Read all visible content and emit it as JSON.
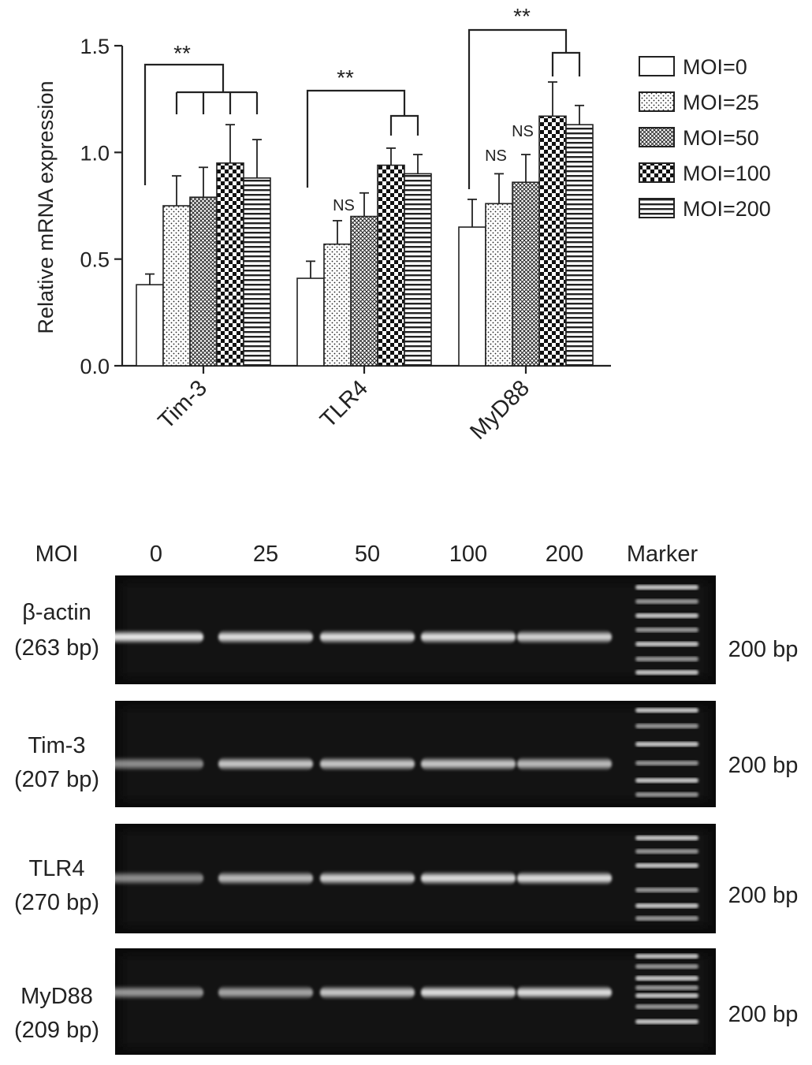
{
  "chart_data": {
    "type": "bar",
    "ylabel": "Relative mRNA expression",
    "xlabel": "",
    "ylim": [
      0,
      1.5
    ],
    "yticks": [
      "0.0",
      "0.5",
      "1.0",
      "1.5"
    ],
    "categories": [
      "Tim-3",
      "TLR4",
      "MyD88"
    ],
    "legend_position": "right",
    "series": [
      {
        "name": "MOI=0",
        "pattern": "white",
        "values": [
          0.38,
          0.41,
          0.65
        ],
        "errors": [
          0.05,
          0.08,
          0.13
        ]
      },
      {
        "name": "MOI=25",
        "pattern": "dots",
        "values": [
          0.75,
          0.57,
          0.76
        ],
        "errors": [
          0.14,
          0.11,
          0.14
        ]
      },
      {
        "name": "MOI=50",
        "pattern": "crosshatch",
        "values": [
          0.79,
          0.7,
          0.86
        ],
        "errors": [
          0.14,
          0.11,
          0.13
        ]
      },
      {
        "name": "MOI=100",
        "pattern": "checker",
        "values": [
          0.95,
          0.94,
          1.17
        ],
        "errors": [
          0.18,
          0.08,
          0.16
        ]
      },
      {
        "name": "MOI=200",
        "pattern": "hstripes",
        "values": [
          0.88,
          0.9,
          1.13
        ],
        "errors": [
          0.18,
          0.09,
          0.09
        ]
      }
    ],
    "annotations": {
      "significance": "**",
      "not_significant": "NS"
    }
  },
  "gel": {
    "moi_label": "MOI",
    "lanes": [
      "0",
      "25",
      "50",
      "100",
      "200",
      "Marker"
    ],
    "rows": [
      {
        "gene": "β-actin",
        "size": "(263 bp)",
        "marker_label": "200 bp",
        "band_intensity": [
          0.95,
          0.9,
          0.9,
          0.9,
          0.85
        ]
      },
      {
        "gene": "Tim-3",
        "size": "(207 bp)",
        "marker_label": "200 bp",
        "band_intensity": [
          0.55,
          0.8,
          0.8,
          0.8,
          0.75
        ]
      },
      {
        "gene": "TLR4",
        "size": "(270 bp)",
        "marker_label": "200 bp",
        "band_intensity": [
          0.55,
          0.75,
          0.85,
          0.9,
          0.9
        ]
      },
      {
        "gene": "MyD88",
        "size": "(209 bp)",
        "marker_label": "200 bp",
        "band_intensity": [
          0.6,
          0.65,
          0.8,
          0.9,
          0.9
        ]
      }
    ]
  }
}
